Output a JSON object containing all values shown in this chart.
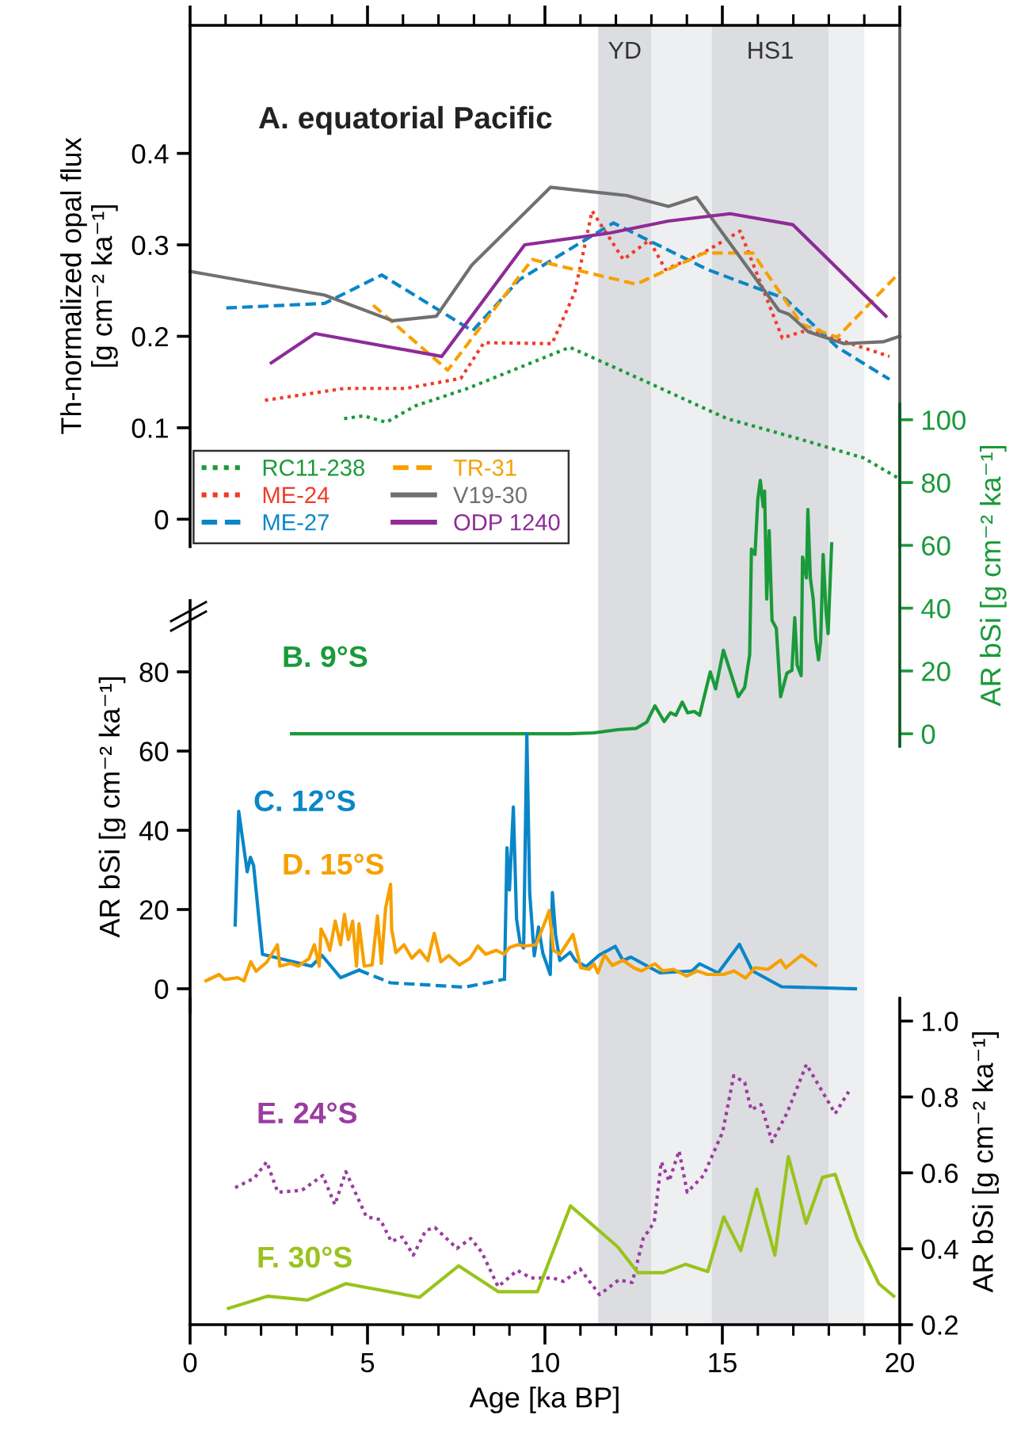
{
  "chart_data": [
    {
      "type": "line",
      "title": "A. equatorial Pacific",
      "ylabel": "Th-normalized opal flux\n[g cm⁻² ka⁻¹]",
      "xlim": [
        0,
        20
      ],
      "ylim": [
        -0.03,
        0.54
      ],
      "xticks": [
        0,
        {
          "value": 1,
          "label": null
        },
        {
          "value": 2,
          "label": null
        },
        {
          "value": 3,
          "label": null
        },
        {
          "value": 4,
          "label": null
        },
        5,
        {
          "value": 6,
          "label": null
        },
        {
          "value": 7,
          "label": null
        },
        {
          "value": 8,
          "label": null
        },
        {
          "value": 9,
          "label": null
        },
        10,
        {
          "value": 11,
          "label": null
        },
        {
          "value": 12,
          "label": null
        },
        {
          "value": 13,
          "label": null
        },
        {
          "value": 14,
          "label": null
        },
        15,
        {
          "value": 16,
          "label": null
        },
        {
          "value": 17,
          "label": null
        },
        {
          "value": 18,
          "label": null
        },
        {
          "value": 19,
          "label": null
        },
        20
      ],
      "yticks": [
        0,
        0.1,
        0.2,
        0.3,
        0.4
      ],
      "tick_labels": "y",
      "legend": "bottom left",
      "grid": false,
      "bands": [
        {
          "axis": "x",
          "from": 11.5,
          "to": 13,
          "label": "YD",
          "color": "#dcdde0"
        },
        {
          "axis": "x",
          "from": 13,
          "to": 14.7,
          "color": "#eeeff1"
        },
        {
          "axis": "x",
          "from": 14.7,
          "to": 18,
          "label": "HS1",
          "color": "#dcdde0"
        },
        {
          "axis": "x",
          "from": 18,
          "to": 19,
          "color": "#eeeff1"
        }
      ],
      "series": [
        {
          "name": "RC11-238",
          "color": "#1a9a3a",
          "line_style": "dotted",
          "x": [
            4.34,
            4.89,
            5.53,
            6.35,
            7.82,
            10.7,
            12.93,
            15.13,
            17.15,
            18.98,
            20
          ],
          "values": [
            0.11,
            0.113,
            0.106,
            0.124,
            0.143,
            0.188,
            0.149,
            0.11,
            0.088,
            0.067,
            0.044
          ]
        },
        {
          "name": "ME-24",
          "color": "#f03c28",
          "line_style": "dotted",
          "x": [
            2.11,
            4.34,
            6.08,
            7.63,
            8.28,
            10.2,
            10.84,
            11.33,
            12.21,
            12.94,
            13.4,
            14.4,
            15.5,
            16.69,
            17.24,
            17.6,
            19.71
          ],
          "values": [
            0.13,
            0.143,
            0.143,
            0.154,
            0.193,
            0.192,
            0.248,
            0.337,
            0.284,
            0.305,
            0.273,
            0.29,
            0.315,
            0.198,
            0.205,
            0.205,
            0.178
          ]
        },
        {
          "name": "ME-27",
          "color": "#0a86c8",
          "line_style": "dashed",
          "x": [
            1.02,
            3.79,
            5.4,
            7.96,
            9.28,
            11.93,
            14.58,
            16.78,
            18.24,
            19.71
          ],
          "values": [
            0.231,
            0.236,
            0.267,
            0.206,
            0.262,
            0.324,
            0.273,
            0.241,
            0.188,
            0.153
          ]
        },
        {
          "name": "TR-31",
          "color": "#f7a000",
          "line_style": "dashed",
          "x": [
            5.16,
            7.26,
            9.64,
            12.57,
            14.49,
            15.86,
            17.24,
            18.24,
            20
          ],
          "values": [
            0.234,
            0.163,
            0.284,
            0.257,
            0.291,
            0.291,
            0.213,
            0.199,
            0.27
          ]
        },
        {
          "name": "V19-30",
          "color": "#707070",
          "line_style": "solid",
          "x": [
            0,
            3.79,
            5.71,
            6.94,
            7.94,
            10.16,
            12.3,
            13.48,
            14.27,
            16.6,
            16.88,
            17.42,
            18.43,
            19.53,
            20
          ],
          "values": [
            0.271,
            0.245,
            0.217,
            0.222,
            0.278,
            0.363,
            0.354,
            0.342,
            0.352,
            0.228,
            0.224,
            0.205,
            0.192,
            0.194,
            0.2
          ]
        },
        {
          "name": "ODP 1240",
          "color": "#8e2b97",
          "line_style": "solid",
          "x": [
            2.29,
            3.52,
            7.09,
            9.43,
            11.84,
            13.48,
            15.22,
            16.99,
            19.61
          ],
          "values": [
            0.171,
            0.203,
            0.178,
            0.3,
            0.313,
            0.326,
            0.334,
            0.322,
            0.222
          ]
        }
      ]
    },
    {
      "type": "line",
      "y2label": "AR bSi [g cm⁻² ka⁻¹]",
      "xlim": [
        0,
        20
      ],
      "y2lim": [
        -4,
        105
      ],
      "y2ticks": [
        0,
        20,
        40,
        60,
        80,
        100
      ],
      "tick_labels": "y",
      "series": [
        {
          "name": "B. 9°S",
          "color": "#1a9a3a",
          "axis": "y2",
          "line_style": "solid",
          "x": [
            2.86,
            7.0,
            10.71,
            11.38,
            12.05,
            12.57,
            12.87,
            13.1,
            13.36,
            13.54,
            13.69,
            13.87,
            14.02,
            14.21,
            14.36,
            14.66,
            14.81,
            15.03,
            15.45,
            15.63,
            15.77,
            15.82,
            15.92,
            16.0,
            16.07,
            16.15,
            16.19,
            16.25,
            16.32,
            16.4,
            16.52,
            16.64,
            16.82,
            16.96,
            17.04,
            17.11,
            17.22,
            17.26,
            17.37,
            17.41,
            17.48,
            17.56,
            17.63,
            17.71,
            17.77,
            17.84,
            17.92,
            17.98,
            18.08
          ],
          "values": [
            0,
            0,
            0,
            0.3,
            1.3,
            1.7,
            3.7,
            8.9,
            3.9,
            6.7,
            5.9,
            10.1,
            6.7,
            7.1,
            5.9,
            19.7,
            14.3,
            26.6,
            11.8,
            14.8,
            25.2,
            58.8,
            57.1,
            74.8,
            80.7,
            72.3,
            77.3,
            42.9,
            64.7,
            36.1,
            33.6,
            11.8,
            19.3,
            20.2,
            37,
            21.8,
            18.5,
            56.3,
            49.6,
            71.4,
            49.6,
            42.9,
            30.3,
            23.5,
            29.4,
            57.1,
            39.5,
            31.9,
            60.5
          ]
        }
      ]
    },
    {
      "type": "line",
      "ylabel": "AR bSi [g cm⁻² ka⁻¹]",
      "xlim": [
        0,
        20
      ],
      "ylim": [
        -6,
        98
      ],
      "yticks": [
        0,
        20,
        40,
        60,
        80
      ],
      "tick_labels": "y",
      "series": [
        {
          "name": "C. 12°S",
          "color": "#0a86c8",
          "line_style": "solid",
          "x": [
            1.27,
            1.37,
            1.61,
            1.7,
            1.79,
            2.04,
            3.42,
            3.72,
            4.24,
            4.76,
            6.5,
            8.86,
            8.93,
            9.0,
            9.11,
            9.2,
            9.3,
            9.4,
            9.49,
            9.57,
            9.7,
            9.82,
            9.94,
            10.15,
            10.21,
            10.3,
            10.42,
            10.71,
            10.86,
            11.16,
            11.53,
            11.98,
            12.2,
            12.42,
            13.24,
            14.14,
            14.36,
            14.88,
            15.48,
            15.85,
            16.67,
            18.75
          ],
          "values": [
            16.1,
            44.8,
            29.5,
            33.2,
            31.1,
            8.7,
            5.7,
            8.4,
            2.8,
            4.7,
            null,
            2.4,
            35.6,
            24.9,
            45.9,
            17.6,
            11.6,
            10.3,
            64.4,
            24.3,
            8.3,
            15.6,
            9.0,
            3.6,
            24.3,
            13.6,
            7.1,
            9.2,
            7.1,
            5.6,
            8.5,
            10.7,
            7.1,
            8.0,
            4.0,
            4.5,
            6.3,
            4.0,
            11.2,
            4.5,
            0.5,
            0.0
          ]
        },
        {
          "color": "#0a86c8",
          "line_style": "dashed",
          "x": [
            4.76,
            5.65,
            7.74,
            8.86
          ],
          "values": [
            4.7,
            1.5,
            0.4,
            2.4
          ]
        },
        {
          "name": "D. 15°S",
          "color": "#f7a000",
          "line_style": "solid",
          "x": [
            0.45,
            0.82,
            0.97,
            1.34,
            1.52,
            1.71,
            1.86,
            2.16,
            2.46,
            2.53,
            2.83,
            3.05,
            3.35,
            3.5,
            3.64,
            3.69,
            3.84,
            3.94,
            4.09,
            4.24,
            4.35,
            4.46,
            4.58,
            4.69,
            4.76,
            4.91,
            5.13,
            5.28,
            5.39,
            5.51,
            5.65,
            5.68,
            5.8,
            6.03,
            6.25,
            6.47,
            6.7,
            6.88,
            7.07,
            7.29,
            7.59,
            7.89,
            8.11,
            8.33,
            8.63,
            8.85,
            9.0,
            9.23,
            9.45,
            9.75,
            10.04,
            10.12,
            10.24,
            10.42,
            10.79,
            11.01,
            11.24,
            11.38,
            11.49,
            11.68,
            11.9,
            12.2,
            12.5,
            12.72,
            13.1,
            13.32,
            13.62,
            13.99,
            14.29,
            14.58,
            15.03,
            15.33,
            15.65,
            15.92,
            16.29,
            16.64,
            16.79,
            17.23,
            17.63
          ],
          "values": [
            2.0,
            3.6,
            2.3,
            2.8,
            2.0,
            6.8,
            4.4,
            6.7,
            11.1,
            5.7,
            6.4,
            5.7,
            7.6,
            11.1,
            5.7,
            15.1,
            12.4,
            9.7,
            17.1,
            11.1,
            18.8,
            12.4,
            17.1,
            5.7,
            16.4,
            5.7,
            6.0,
            18.4,
            6.4,
            20.4,
            26.4,
            15.1,
            9.1,
            11.1,
            7.7,
            9.7,
            7.1,
            14.0,
            6.8,
            8.4,
            6.0,
            7.7,
            10.8,
            8.7,
            9.7,
            8.7,
            10.4,
            11.1,
            10.8,
            11.1,
            17.7,
            19.7,
            9.7,
            8.7,
            13.7,
            5.3,
            4.9,
            6.3,
            4.0,
            8.5,
            5.9,
            7.2,
            5.3,
            4.5,
            6.3,
            4.5,
            4.9,
            3.2,
            4.5,
            3.6,
            3.6,
            4.5,
            2.7,
            5.3,
            4.9,
            7.2,
            5.3,
            8.5,
            5.9
          ]
        }
      ]
    },
    {
      "type": "line",
      "xlabel": "Age [ka BP]",
      "y2label": "AR bSi [g cm⁻² ka⁻¹]",
      "xlim": [
        0,
        20
      ],
      "y2lim": [
        0.2,
        1.06
      ],
      "xticks": [
        0,
        {
          "value": 1,
          "label": null
        },
        {
          "value": 2,
          "label": null
        },
        {
          "value": 3,
          "label": null
        },
        {
          "value": 4,
          "label": null
        },
        5,
        {
          "value": 6,
          "label": null
        },
        {
          "value": 7,
          "label": null
        },
        {
          "value": 8,
          "label": null
        },
        {
          "value": 9,
          "label": null
        },
        10,
        {
          "value": 11,
          "label": null
        },
        {
          "value": 12,
          "label": null
        },
        {
          "value": 13,
          "label": null
        },
        {
          "value": 14,
          "label": null
        },
        15,
        {
          "value": 16,
          "label": null
        },
        {
          "value": 17,
          "label": null
        },
        {
          "value": 18,
          "label": null
        },
        {
          "value": 19,
          "label": null
        },
        20
      ],
      "y2ticks": [
        0.2,
        0.4,
        0.6,
        0.8,
        {
          "value": 1.0,
          "label": "1.0"
        }
      ],
      "series": [
        {
          "name": "E. 24°S",
          "color": "#9b3ca0",
          "axis": "y2",
          "line_style": "dotted",
          "x": [
            1.27,
            1.81,
            2.16,
            2.47,
            3.15,
            3.74,
            4.08,
            4.39,
            4.97,
            5.36,
            5.67,
            5.98,
            6.29,
            6.64,
            6.9,
            7.52,
            7.91,
            8.22,
            8.68,
            9.22,
            9.61,
            10.22,
            10.53,
            10.99,
            11.54,
            12.08,
            12.46,
            12.77,
            13.08,
            13.28,
            13.5,
            13.78,
            14.01,
            14.47,
            15.01,
            15.32,
            15.63,
            15.81,
            16.09,
            16.4,
            16.83,
            17.37,
            18.18,
            18.56
          ],
          "values": [
            0.561,
            0.586,
            0.629,
            0.549,
            0.554,
            0.593,
            0.516,
            0.603,
            0.484,
            0.477,
            0.419,
            0.431,
            0.383,
            0.448,
            0.456,
            0.401,
            0.427,
            0.391,
            0.3,
            0.343,
            0.323,
            0.323,
            0.314,
            0.347,
            0.279,
            0.318,
            0.311,
            0.427,
            0.47,
            0.629,
            0.578,
            0.658,
            0.549,
            0.593,
            0.708,
            0.856,
            0.838,
            0.766,
            0.78,
            0.682,
            0.759,
            0.886,
            0.756,
            0.814
          ]
        },
        {
          "name": "F. 30°S",
          "color": "#99c31c",
          "axis": "y2",
          "line_style": "solid",
          "x": [
            1.08,
            2.19,
            3.31,
            4.39,
            6.46,
            7.57,
            8.68,
            9.79,
            10.72,
            12.05,
            12.62,
            13.34,
            13.96,
            14.59,
            15.04,
            15.52,
            15.97,
            16.48,
            16.86,
            17.36,
            17.82,
            18.18,
            18.8,
            19.41,
            19.83
          ],
          "values": [
            0.243,
            0.275,
            0.265,
            0.308,
            0.272,
            0.355,
            0.287,
            0.287,
            0.513,
            0.405,
            0.337,
            0.337,
            0.359,
            0.34,
            0.484,
            0.395,
            0.557,
            0.383,
            0.643,
            0.467,
            0.588,
            0.596,
            0.427,
            0.308,
            0.275
          ]
        }
      ]
    }
  ]
}
